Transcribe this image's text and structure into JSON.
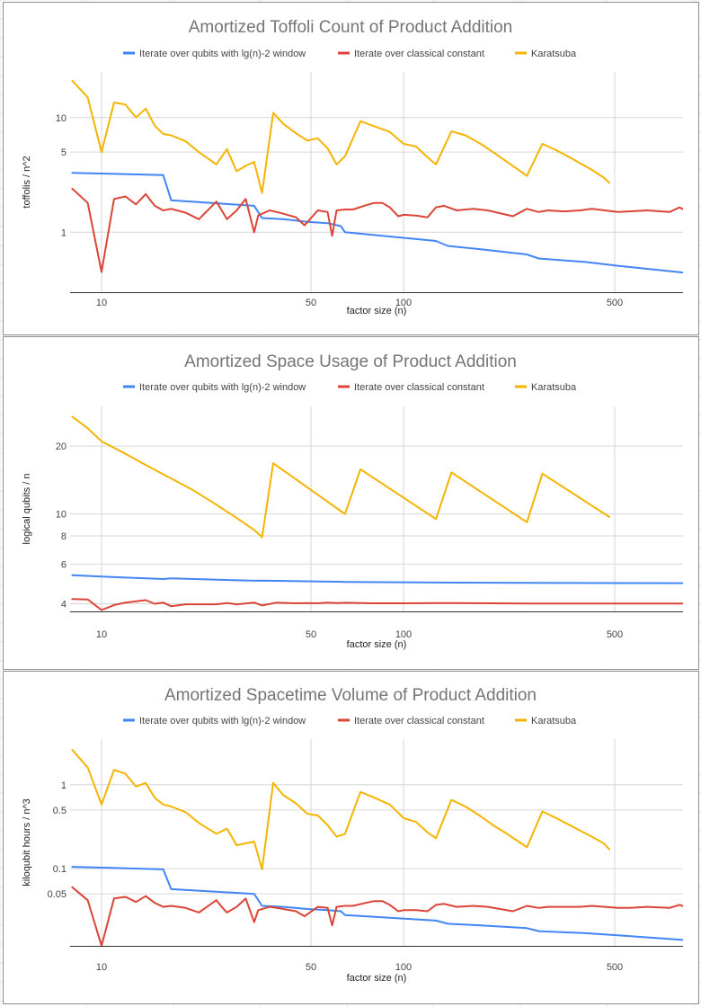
{
  "colors": {
    "blue": "#4285f4",
    "red": "#db4437",
    "yellow": "#f4b400",
    "grid": "#d6d6d6"
  },
  "chart_data": [
    {
      "type": "line",
      "title": "Amortized Toffoli Count of Product Addition",
      "xlabel": "factor size (n)",
      "ylabel": "toffolis / n^2",
      "xscale": "log",
      "yscale": "log",
      "xlim": [
        7.5,
        900
      ],
      "ylim": [
        0.3,
        25
      ],
      "xticks": [
        10,
        50,
        100,
        500
      ],
      "xtick_labels": [
        "10",
        "50",
        "100",
        "500"
      ],
      "yticks": [
        1,
        5,
        10
      ],
      "ytick_labels": [
        "1",
        "5",
        "10"
      ],
      "legend_position": "top",
      "series": [
        {
          "name": "Iterate over qubits with lg(n)-2 window",
          "color": "#4285f4",
          "x": [
            8,
            16,
            17,
            32,
            34,
            40,
            48,
            56,
            62,
            64,
            128,
            140,
            180,
            256,
            280,
            400,
            512,
            880
          ],
          "y": [
            3.3,
            3.15,
            1.9,
            1.7,
            1.33,
            1.3,
            1.23,
            1.2,
            1.13,
            1.0,
            0.84,
            0.76,
            0.71,
            0.64,
            0.59,
            0.55,
            0.51,
            0.44
          ]
        },
        {
          "name": "Iterate over classical constant",
          "color": "#db4437",
          "x": [
            8,
            9,
            10,
            11,
            12,
            13,
            14,
            15,
            16,
            17,
            19,
            21,
            24,
            25,
            26,
            28,
            30,
            32,
            33,
            36,
            38,
            40,
            44,
            47,
            52,
            56,
            58,
            60,
            64,
            68,
            75,
            80,
            85,
            90,
            96,
            100,
            110,
            120,
            128,
            136,
            150,
            170,
            190,
            230,
            256,
            280,
            300,
            340,
            384,
            420,
            512,
            560,
            640,
            760,
            820,
            880
          ],
          "y": [
            2.4,
            1.8,
            0.45,
            1.95,
            2.05,
            1.75,
            2.15,
            1.7,
            1.55,
            1.6,
            1.48,
            1.3,
            1.85,
            1.55,
            1.3,
            1.55,
            1.95,
            1.0,
            1.4,
            1.55,
            1.5,
            1.45,
            1.35,
            1.15,
            1.55,
            1.5,
            0.93,
            1.55,
            1.58,
            1.58,
            1.72,
            1.8,
            1.8,
            1.65,
            1.38,
            1.42,
            1.4,
            1.35,
            1.65,
            1.7,
            1.55,
            1.6,
            1.55,
            1.38,
            1.6,
            1.5,
            1.55,
            1.52,
            1.55,
            1.6,
            1.5,
            1.52,
            1.55,
            1.5,
            1.65,
            1.48
          ]
        },
        {
          "name": "Karatsuba",
          "color": "#f4b400",
          "x": [
            8,
            9,
            10,
            11,
            12,
            13,
            14,
            15,
            16,
            17,
            19,
            21,
            24,
            26,
            28,
            30,
            32,
            34,
            37,
            40,
            44,
            48,
            52,
            56,
            60,
            64,
            72,
            80,
            90,
            100,
            110,
            120,
            128,
            144,
            160,
            180,
            200,
            220,
            240,
            256,
            288,
            320,
            360,
            420,
            460,
            480
          ],
          "y": [
            21,
            15,
            5.0,
            13.5,
            13,
            10,
            12,
            8.5,
            7.2,
            7.0,
            6.2,
            5.0,
            3.9,
            5.3,
            3.4,
            3.8,
            4.1,
            2.2,
            11,
            8.8,
            7.3,
            6.3,
            6.6,
            5.4,
            3.9,
            4.6,
            9.3,
            8.4,
            7.5,
            5.9,
            5.6,
            4.5,
            3.9,
            7.6,
            7.0,
            5.9,
            4.9,
            4.1,
            3.5,
            3.1,
            5.9,
            5.2,
            4.4,
            3.5,
            3.0,
            2.7
          ]
        }
      ]
    },
    {
      "type": "line",
      "title": "Amortized Space Usage of Product Addition",
      "xlabel": "factor size (n)",
      "ylabel": "logical qubits / n",
      "xscale": "log",
      "yscale": "log",
      "xlim": [
        7.5,
        900
      ],
      "ylim": [
        3.7,
        30
      ],
      "xticks": [
        10,
        50,
        100,
        500
      ],
      "xtick_labels": [
        "10",
        "50",
        "100",
        "500"
      ],
      "yticks": [
        4,
        6,
        8,
        10,
        20
      ],
      "ytick_labels": [
        "4",
        "6",
        "8",
        "10",
        "20"
      ],
      "legend_position": "top",
      "series": [
        {
          "name": "Iterate over qubits with lg(n)-2 window",
          "color": "#4285f4",
          "x": [
            8,
            10,
            16,
            17,
            32,
            34,
            64,
            128,
            256,
            512,
            880
          ],
          "y": [
            5.35,
            5.28,
            5.15,
            5.18,
            5.06,
            5.07,
            5.0,
            4.97,
            4.95,
            4.94,
            4.93
          ]
        },
        {
          "name": "Iterate over classical constant",
          "color": "#db4437",
          "x": [
            8,
            9,
            10,
            11,
            12,
            14,
            15,
            16,
            17,
            19,
            24,
            26,
            28,
            32,
            34,
            38,
            44,
            48,
            52,
            56,
            60,
            64,
            80,
            100,
            128,
            200,
            256,
            400,
            512,
            880
          ],
          "y": [
            4.2,
            4.18,
            3.75,
            3.95,
            4.05,
            4.15,
            4.0,
            4.05,
            3.9,
            3.98,
            3.98,
            4.03,
            3.98,
            4.05,
            3.93,
            4.05,
            4.02,
            4.03,
            4.02,
            4.05,
            4.03,
            4.04,
            4.02,
            4.02,
            4.03,
            4.02,
            4.01,
            4.01,
            4.01,
            4.01
          ]
        },
        {
          "name": "Karatsuba",
          "color": "#f4b400",
          "x": [
            8,
            9,
            10,
            12,
            14,
            16,
            20,
            24,
            28,
            32,
            34,
            37,
            64,
            72,
            128,
            144,
            256,
            288,
            480
          ],
          "y": [
            27,
            24,
            21,
            18.5,
            16.5,
            15,
            12.8,
            11,
            9.6,
            8.5,
            7.9,
            16.8,
            10.0,
            15.8,
            9.5,
            15.3,
            9.2,
            15.1,
            9.7
          ]
        }
      ]
    },
    {
      "type": "line",
      "title": "Amortized Spacetime Volume of Product Addition",
      "xlabel": "factor size (n)",
      "ylabel": "kiloqubit hours / n^3",
      "xscale": "log",
      "yscale": "log",
      "xlim": [
        7.5,
        900
      ],
      "ylim": [
        0.012,
        3.5
      ],
      "xticks": [
        10,
        50,
        100,
        500
      ],
      "xtick_labels": [
        "10",
        "50",
        "100",
        "500"
      ],
      "yticks": [
        0.05,
        0.1,
        0.5,
        1
      ],
      "ytick_labels": [
        "0.05",
        "0.1",
        "0.5",
        "1"
      ],
      "legend_position": "top",
      "series": [
        {
          "name": "Iterate over qubits with lg(n)-2 window",
          "color": "#4285f4",
          "x": [
            8,
            16,
            17,
            32,
            34,
            40,
            48,
            56,
            62,
            64,
            128,
            140,
            180,
            256,
            280,
            400,
            512,
            880
          ],
          "y": [
            0.105,
            0.098,
            0.057,
            0.05,
            0.036,
            0.035,
            0.033,
            0.032,
            0.031,
            0.028,
            0.024,
            0.022,
            0.021,
            0.0195,
            0.018,
            0.017,
            0.016,
            0.014
          ]
        },
        {
          "name": "Iterate over classical constant",
          "color": "#db4437",
          "x": [
            8,
            9,
            10,
            11,
            12,
            13,
            14,
            15,
            16,
            17,
            19,
            21,
            24,
            25,
            26,
            28,
            30,
            32,
            33,
            36,
            38,
            40,
            44,
            47,
            52,
            56,
            58,
            60,
            64,
            68,
            75,
            80,
            85,
            90,
            96,
            100,
            110,
            120,
            128,
            136,
            150,
            170,
            190,
            230,
            256,
            280,
            300,
            340,
            384,
            420,
            512,
            560,
            640,
            760,
            820,
            880
          ],
          "y": [
            0.06,
            0.042,
            0.012,
            0.044,
            0.046,
            0.04,
            0.047,
            0.039,
            0.035,
            0.036,
            0.034,
            0.03,
            0.042,
            0.035,
            0.03,
            0.035,
            0.044,
            0.023,
            0.032,
            0.035,
            0.034,
            0.033,
            0.031,
            0.027,
            0.035,
            0.034,
            0.021,
            0.035,
            0.036,
            0.036,
            0.039,
            0.041,
            0.041,
            0.037,
            0.031,
            0.032,
            0.032,
            0.031,
            0.037,
            0.038,
            0.035,
            0.036,
            0.035,
            0.031,
            0.036,
            0.034,
            0.035,
            0.035,
            0.035,
            0.036,
            0.034,
            0.034,
            0.035,
            0.034,
            0.037,
            0.034
          ]
        },
        {
          "name": "Karatsuba",
          "color": "#f4b400",
          "x": [
            8,
            9,
            10,
            11,
            12,
            13,
            14,
            15,
            16,
            17,
            19,
            21,
            24,
            26,
            28,
            30,
            32,
            34,
            37,
            40,
            44,
            48,
            52,
            56,
            60,
            64,
            72,
            80,
            90,
            100,
            110,
            120,
            128,
            144,
            160,
            180,
            200,
            220,
            240,
            256,
            288,
            320,
            360,
            420,
            460,
            480
          ],
          "y": [
            2.6,
            1.6,
            0.58,
            1.5,
            1.35,
            0.95,
            1.05,
            0.7,
            0.58,
            0.55,
            0.47,
            0.35,
            0.26,
            0.3,
            0.19,
            0.2,
            0.21,
            0.098,
            1.05,
            0.75,
            0.6,
            0.45,
            0.43,
            0.33,
            0.24,
            0.26,
            0.82,
            0.7,
            0.58,
            0.4,
            0.36,
            0.27,
            0.23,
            0.66,
            0.55,
            0.42,
            0.32,
            0.26,
            0.21,
            0.18,
            0.48,
            0.4,
            0.32,
            0.24,
            0.2,
            0.17
          ]
        }
      ]
    }
  ]
}
